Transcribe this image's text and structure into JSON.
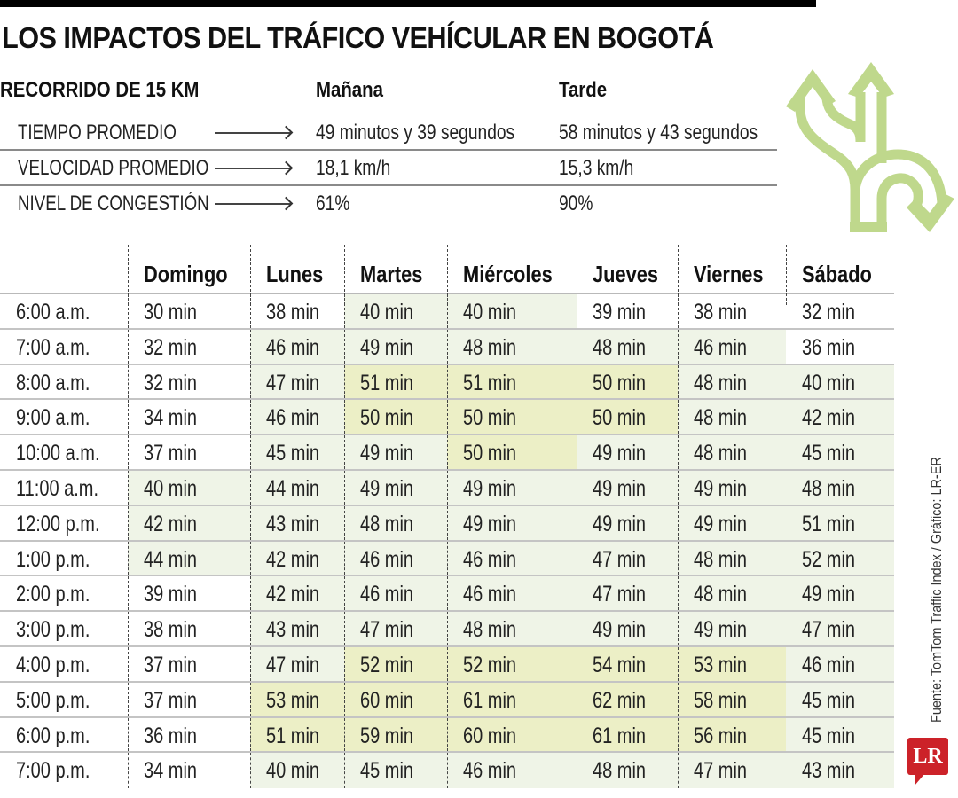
{
  "title": "LOS IMPACTOS DEL TRÁFICO VEHÍCULAR EN BOGOTÁ",
  "summary": {
    "heading": "RECORRIDO DE 15 KM",
    "col_morning": "Mañana",
    "col_afternoon": "Tarde",
    "rows": [
      {
        "label": "TIEMPO PROMEDIO",
        "morning": "49 minutos y 39 segundos",
        "afternoon": "58 minutos y 43 segundos"
      },
      {
        "label": "VELOCIDAD PROMEDIO",
        "morning": "18,1 km/h",
        "afternoon": "15,3 km/h"
      },
      {
        "label": "NIVEL DE CONGESTIÓN",
        "morning": "61%",
        "afternoon": "90%"
      }
    ]
  },
  "icon": "split-road-arrows-icon",
  "colors": {
    "accent_green": "#bfd88c",
    "shade_light": "#eff4e7",
    "shade_high": "#ecefc6",
    "logo_red": "#cc2229"
  },
  "table": {
    "headers": [
      "Domingo",
      "Lunes",
      "Martes",
      "Miércoles",
      "Jueves",
      "Viernes",
      "Sábado"
    ],
    "rows": [
      {
        "time": "6:00 a.m.",
        "values": [
          "30 min",
          "38 min",
          "40 min",
          "40 min",
          "39 min",
          "38 min",
          "32 min"
        ],
        "shade": [
          0,
          0,
          1,
          1,
          0,
          0,
          0
        ]
      },
      {
        "time": "7:00 a.m.",
        "values": [
          "32 min",
          "46 min",
          "49 min",
          "48 min",
          "48 min",
          "46 min",
          "36 min"
        ],
        "shade": [
          0,
          1,
          1,
          1,
          1,
          1,
          0
        ]
      },
      {
        "time": "8:00 a.m.",
        "values": [
          "32 min",
          "47 min",
          "51 min",
          "51 min",
          "50 min",
          "48 min",
          "40 min"
        ],
        "shade": [
          0,
          1,
          2,
          2,
          2,
          1,
          1
        ]
      },
      {
        "time": "9:00 a.m.",
        "values": [
          "34 min",
          "46 min",
          "50 min",
          "50 min",
          "50 min",
          "48 min",
          "42 min"
        ],
        "shade": [
          0,
          1,
          2,
          2,
          2,
          1,
          1
        ]
      },
      {
        "time": "10:00 a.m.",
        "values": [
          "37 min",
          "45 min",
          "49 min",
          "50 min",
          "49 min",
          "48 min",
          "45 min"
        ],
        "shade": [
          0,
          1,
          1,
          2,
          1,
          1,
          1
        ]
      },
      {
        "time": "11:00 a.m.",
        "values": [
          "40 min",
          "44 min",
          "49 min",
          "49 min",
          "49 min",
          "49 min",
          "48 min"
        ],
        "shade": [
          1,
          1,
          1,
          1,
          1,
          1,
          1
        ]
      },
      {
        "time": "12:00 p.m.",
        "values": [
          "42 min",
          "43 min",
          "48 min",
          "49 min",
          "49 min",
          "49 min",
          "51 min"
        ],
        "shade": [
          1,
          1,
          1,
          1,
          1,
          1,
          1
        ]
      },
      {
        "time": "1:00 p.m.",
        "values": [
          "44 min",
          "42 min",
          "46 min",
          "46 min",
          "47 min",
          "48 min",
          "52 min"
        ],
        "shade": [
          1,
          1,
          1,
          1,
          1,
          1,
          1
        ]
      },
      {
        "time": "2:00 p.m.",
        "values": [
          "39 min",
          "42 min",
          "46 min",
          "46 min",
          "47 min",
          "48 min",
          "49 min"
        ],
        "shade": [
          0,
          1,
          1,
          1,
          1,
          1,
          1
        ]
      },
      {
        "time": "3:00 p.m.",
        "values": [
          "38 min",
          "43 min",
          "47 min",
          "48 min",
          "49 min",
          "49 min",
          "47 min"
        ],
        "shade": [
          0,
          1,
          1,
          1,
          1,
          1,
          1
        ]
      },
      {
        "time": "4:00 p.m.",
        "values": [
          "37 min",
          "47 min",
          "52 min",
          "52 min",
          "54 min",
          "53 min",
          "46 min"
        ],
        "shade": [
          0,
          1,
          2,
          2,
          2,
          2,
          1
        ]
      },
      {
        "time": "5:00 p.m.",
        "values": [
          "37 min",
          "53 min",
          "60 min",
          "61 min",
          "62 min",
          "58 min",
          "45 min"
        ],
        "shade": [
          0,
          2,
          2,
          2,
          2,
          2,
          1
        ]
      },
      {
        "time": "6:00 p.m.",
        "values": [
          "36 min",
          "51 min",
          "59 min",
          "60 min",
          "61 min",
          "56 min",
          "45 min"
        ],
        "shade": [
          0,
          2,
          2,
          2,
          2,
          2,
          1
        ]
      },
      {
        "time": "7:00 p.m.",
        "values": [
          "34 min",
          "40 min",
          "45 min",
          "46 min",
          "48 min",
          "47 min",
          "43 min"
        ],
        "shade": [
          0,
          1,
          1,
          1,
          1,
          1,
          1
        ]
      }
    ]
  },
  "source": "Fuente: TomTom Traffic Index / Gráfico: LR-ER",
  "logo": "LR",
  "chart_data": {
    "type": "table",
    "title": "LOS IMPACTOS DEL TRÁFICO VEHÍCULAR EN BOGOTÁ",
    "subtitle": "RECORRIDO DE 15 KM",
    "summary": {
      "columns": [
        "Mañana",
        "Tarde"
      ],
      "rows": [
        {
          "metric": "TIEMPO PROMEDIO",
          "values": [
            "49 minutos y 39 segundos",
            "58 minutos y 43 segundos"
          ]
        },
        {
          "metric": "VELOCIDAD PROMEDIO",
          "values": [
            "18,1 km/h",
            "15,3 km/h"
          ]
        },
        {
          "metric": "NIVEL DE CONGESTIÓN",
          "values": [
            "61%",
            "90%"
          ]
        }
      ]
    },
    "categories": [
      "6:00 a.m.",
      "7:00 a.m.",
      "8:00 a.m.",
      "9:00 a.m.",
      "10:00 a.m.",
      "11:00 a.m.",
      "12:00 p.m.",
      "1:00 p.m.",
      "2:00 p.m.",
      "3:00 p.m.",
      "4:00 p.m.",
      "5:00 p.m.",
      "6:00 p.m.",
      "7:00 p.m."
    ],
    "unit": "min",
    "series": [
      {
        "name": "Domingo",
        "values": [
          30,
          32,
          32,
          34,
          37,
          40,
          42,
          44,
          39,
          38,
          37,
          37,
          36,
          34
        ]
      },
      {
        "name": "Lunes",
        "values": [
          38,
          46,
          47,
          46,
          45,
          44,
          43,
          42,
          42,
          43,
          47,
          53,
          51,
          40
        ]
      },
      {
        "name": "Martes",
        "values": [
          40,
          49,
          51,
          50,
          49,
          49,
          48,
          46,
          46,
          47,
          52,
          60,
          59,
          45
        ]
      },
      {
        "name": "Miércoles",
        "values": [
          40,
          48,
          51,
          50,
          50,
          49,
          49,
          46,
          46,
          48,
          52,
          61,
          60,
          46
        ]
      },
      {
        "name": "Jueves",
        "values": [
          39,
          48,
          50,
          50,
          49,
          49,
          49,
          47,
          47,
          49,
          54,
          62,
          61,
          48
        ]
      },
      {
        "name": "Viernes",
        "values": [
          38,
          46,
          48,
          48,
          48,
          49,
          49,
          48,
          48,
          49,
          53,
          58,
          56,
          47
        ]
      },
      {
        "name": "Sábado",
        "values": [
          32,
          36,
          40,
          42,
          45,
          48,
          51,
          52,
          49,
          47,
          46,
          45,
          45,
          43
        ]
      }
    ],
    "source": "Fuente: TomTom Traffic Index / Gráfico: LR-ER"
  }
}
